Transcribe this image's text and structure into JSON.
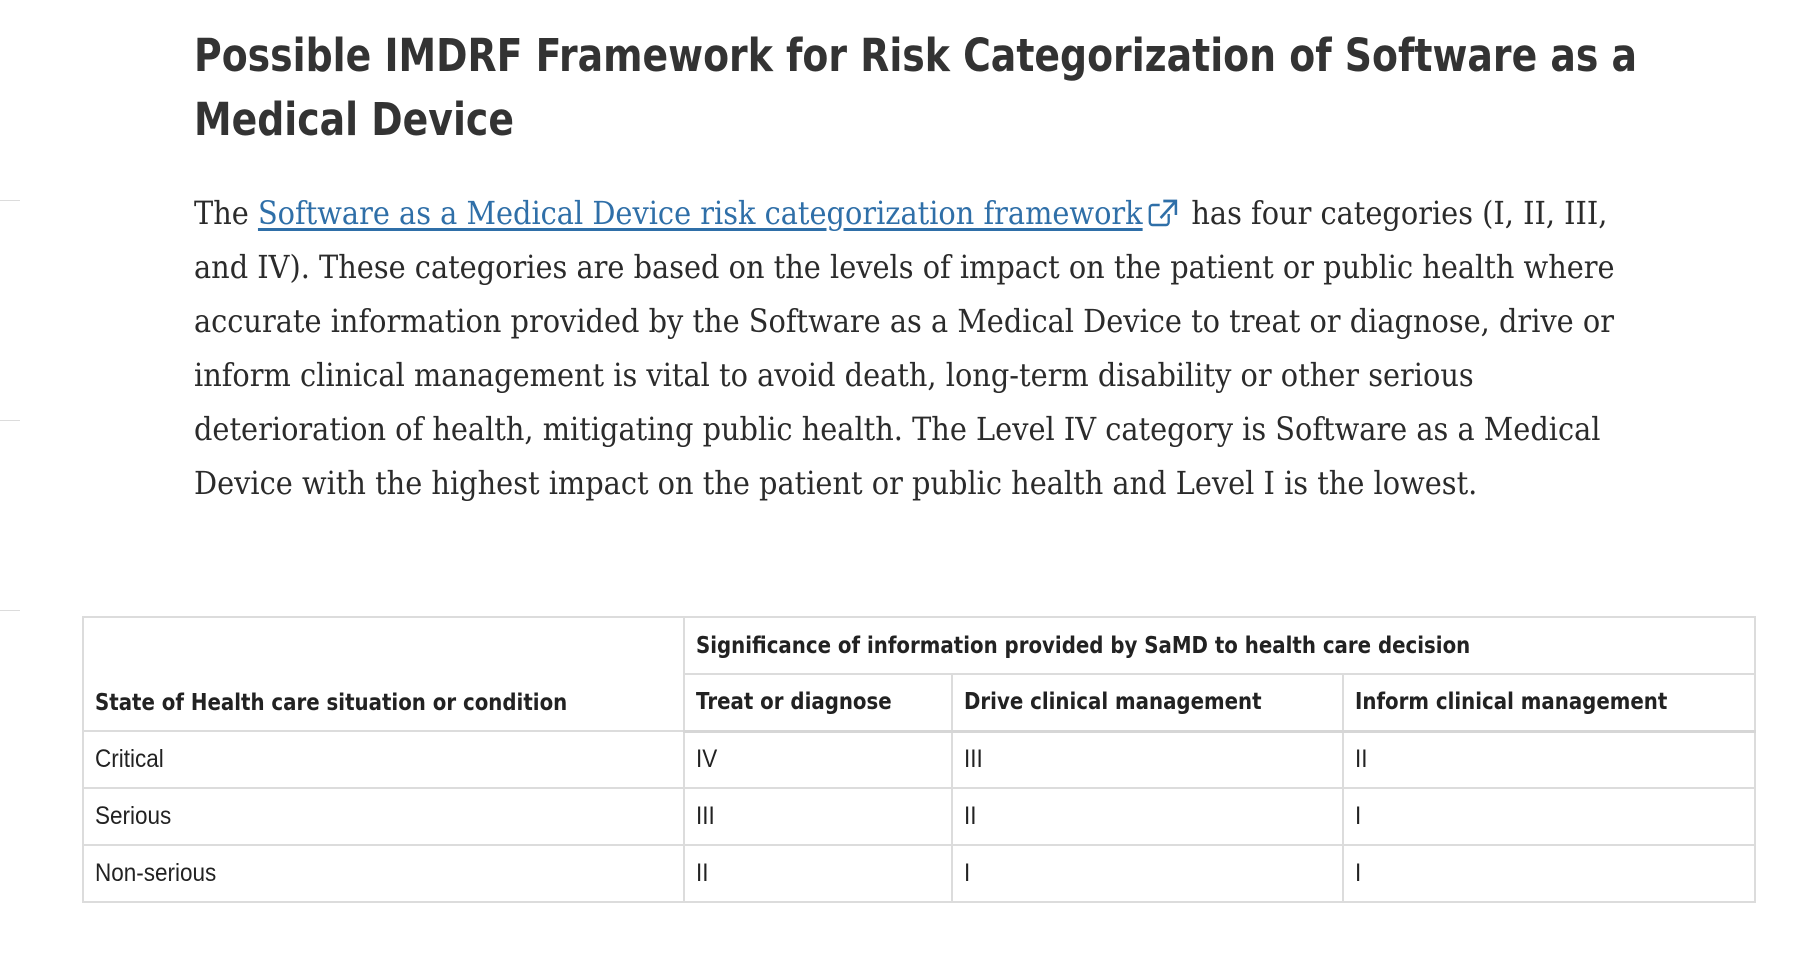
{
  "heading": "Possible IMDRF Framework for Risk Categorization of Software as a Medical Device",
  "intro": {
    "before_link": "The ",
    "link_text": "Software as a Medical Device  risk categorization framework",
    "after_link": " has four categories (I, II, III, and IV).  These categories are based on the levels of impact on the patient or public health where accurate information provided by the Software as a Medical Device to treat or diagnose, drive or inform clinical management is vital to avoid death, long-term disability or other serious deterioration of health, mitigating public health. The Level IV category is Software as a Medical Device with the highest impact on the patient or public health and Level I is the lowest."
  },
  "icons": {
    "link": "external-link-icon"
  },
  "colors": {
    "link": "#2f6fa8",
    "heading": "#333333",
    "border": "#dcdcdc"
  },
  "table": {
    "group_header": "Significance of information provided by SaMD to health care decision",
    "state_header": "State of Health care situation or condition",
    "columns": [
      "Treat or diagnose",
      "Drive clinical management",
      "Inform clinical management"
    ],
    "rows": [
      {
        "state": "Critical",
        "values": [
          "IV",
          "III",
          "II"
        ]
      },
      {
        "state": "Serious",
        "values": [
          "III",
          "II",
          "I"
        ]
      },
      {
        "state": "Non-serious",
        "values": [
          "II",
          "I",
          "I"
        ]
      }
    ]
  }
}
